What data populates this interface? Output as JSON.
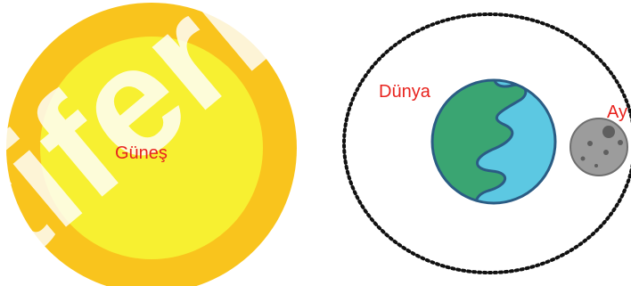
{
  "labels": {
    "sun": "Güneş",
    "earth": "Dünya",
    "moon": "Ay"
  },
  "colors": {
    "label": "#e8231e",
    "sun_outer": "#f9c41d",
    "sun_inner": "#f7f031",
    "earth_land": "#3aa572",
    "earth_ocean": "#5cc8e2",
    "earth_outline": "#2b5c84",
    "moon": "#9c9c9c",
    "orbit": "#111111",
    "watermark": "#ffffff"
  },
  "watermark": {
    "text": "tiferi"
  }
}
